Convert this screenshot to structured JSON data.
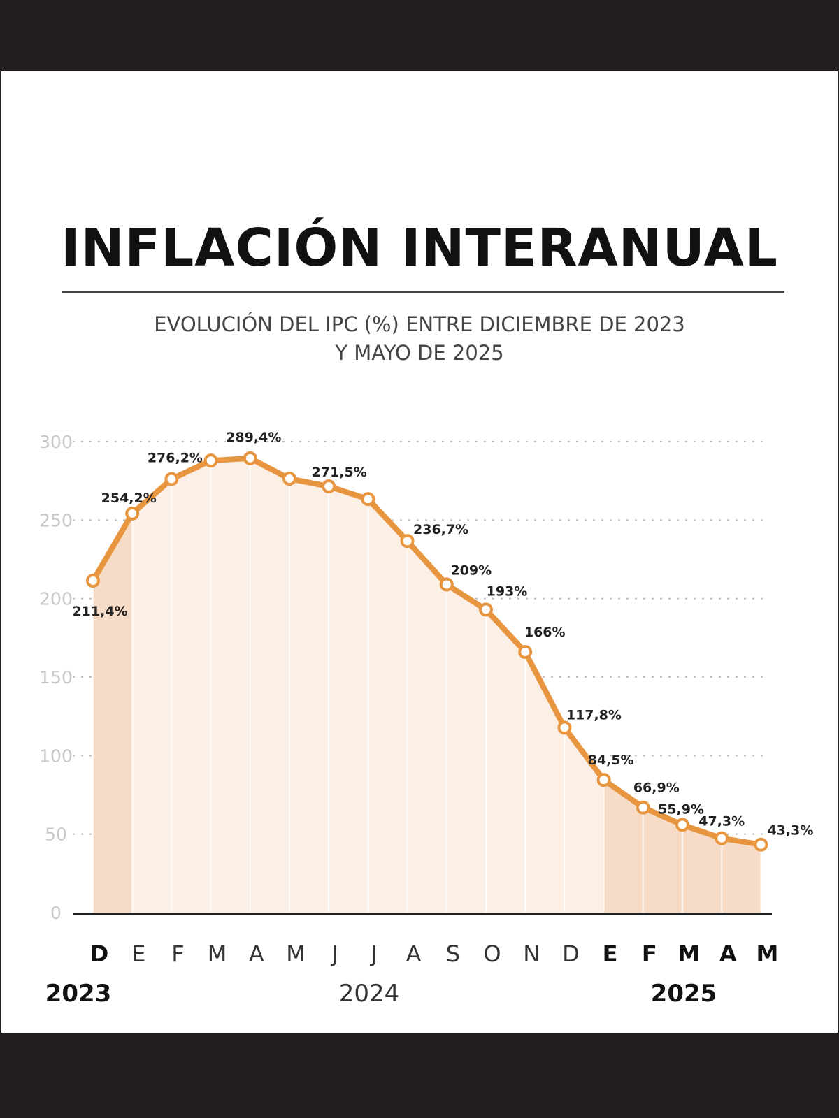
{
  "chart_data": {
    "type": "area",
    "title": "INFLACIÓN INTERANUAL",
    "subtitle": [
      "EVOLUCIÓN DEL IPC (%) ENTRE DICIEMBRE DE 2023",
      "Y MAYO DE 2025"
    ],
    "ylim": [
      0,
      300
    ],
    "yticks": [
      "0",
      "50",
      "100",
      "150",
      "200",
      "250",
      "300"
    ],
    "grid": true,
    "categories": [
      "D",
      "E",
      "F",
      "M",
      "A",
      "M",
      "J",
      "J",
      "A",
      "S",
      "O",
      "N",
      "D",
      "E",
      "F",
      "M",
      "A",
      "M"
    ],
    "values": [
      211.4,
      254.2,
      276.2,
      287.9,
      289.4,
      276.4,
      271.5,
      263.4,
      236.7,
      209,
      193,
      166,
      117.8,
      84.5,
      66.9,
      55.9,
      47.3,
      43.3
    ],
    "labels": [
      "211,4%",
      "254,2%",
      "276,2%",
      "",
      "289,4%",
      "",
      "271,5%",
      "",
      "236,7%",
      "209%",
      "193%",
      "166%",
      "117,8%",
      "84,5%",
      "66,9%",
      "55,9%",
      "47,3%",
      "43,3%"
    ],
    "years": [
      {
        "label": "2023",
        "start": 0,
        "end": 0
      },
      {
        "label": "2024",
        "start": 1,
        "end": 12
      },
      {
        "label": "2025",
        "start": 13,
        "end": 17
      }
    ],
    "colors": {
      "line": "#e8953f",
      "fill_2024": "#fcefe6",
      "fill_edge": "#f6dcc6",
      "grid": "#bdbdbd",
      "axis": "#222222",
      "tick": "#c8c8c8"
    }
  }
}
